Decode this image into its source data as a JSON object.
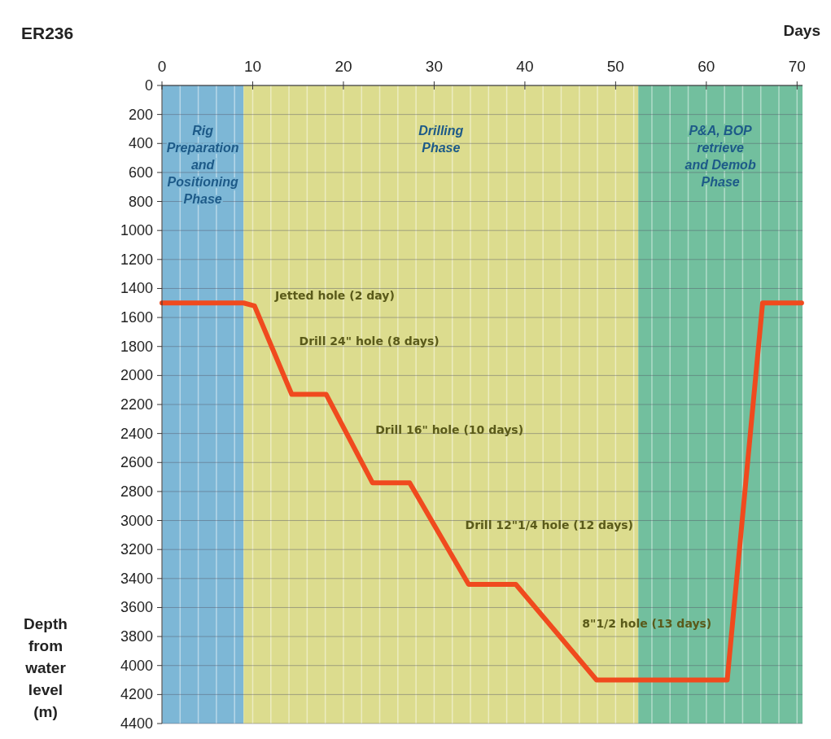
{
  "chart_data": {
    "type": "line",
    "title": "ER236",
    "xlabel": "Days",
    "ylabel": "Depth from water level (m)",
    "x": [
      0,
      9,
      10.2,
      14.3,
      18.1,
      23.2,
      27.3,
      33.8,
      39,
      47.9,
      62.3,
      66.2,
      70.5
    ],
    "series": [
      {
        "color": "#f04a1e",
        "values": [
          1500,
          1500,
          1520,
          2130,
          2130,
          2740,
          2740,
          3440,
          3440,
          4100,
          4100,
          1500,
          1500
        ]
      }
    ],
    "xlim": [
      0,
      70.6
    ],
    "xticks": [
      0,
      10,
      20,
      30,
      40,
      50,
      60,
      70
    ],
    "ylim": [
      4400,
      0
    ],
    "yticks": [
      0,
      200,
      400,
      600,
      800,
      1000,
      1200,
      1400,
      1600,
      1800,
      2000,
      2200,
      2400,
      2600,
      2800,
      3000,
      3200,
      3400,
      3600,
      3800,
      4000,
      4200,
      4400
    ],
    "grid": true,
    "line_style": "solid",
    "marker": "none",
    "bands": [
      {
        "axis": "x",
        "from": 0,
        "to": 9,
        "label": "Rig Preparation and Positioning Phase",
        "color": "#7db7d6"
      },
      {
        "axis": "x",
        "from": 9,
        "to": 52.5,
        "label": "Drilling Phase",
        "color": "#dcdc8e"
      },
      {
        "axis": "x",
        "from": 52.5,
        "to": 70.6,
        "label": "P&A, BOP retrieve and Demob Phase",
        "color": "#72bf9e"
      }
    ],
    "annotations": [
      "Jetted hole (2 day)",
      "Drill 24\" hole (8 days)",
      "Drill 16\" hole (10 days)",
      "Drill 12\"1/4 hole (12 days)",
      "8\"1/2 hole (13 days)"
    ]
  }
}
